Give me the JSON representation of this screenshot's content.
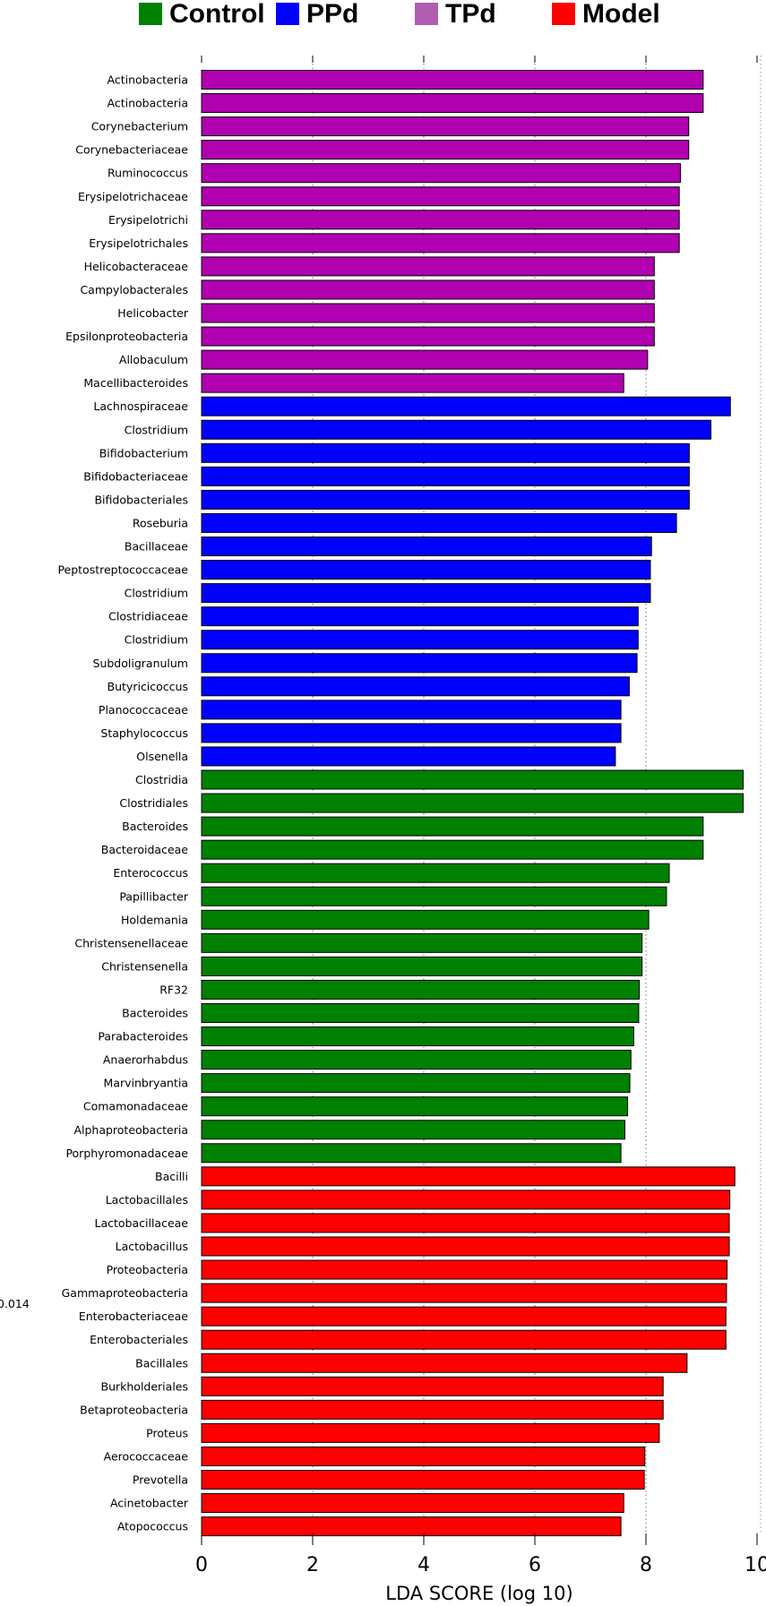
{
  "chart_data": {
    "type": "bar",
    "orientation": "horizontal",
    "xlabel": "LDA SCORE (log 10)",
    "xlim": [
      0,
      10
    ],
    "xticks": [
      "0",
      "2",
      "4",
      "6",
      "8",
      "10"
    ],
    "grid": "vertical dotted",
    "legend_position": "top",
    "side_note": "0.014",
    "groups": [
      {
        "name": "Control",
        "color": "#008000"
      },
      {
        "name": "PPd",
        "color": "#0000ff"
      },
      {
        "name": "TPd",
        "color": "#b05fb0"
      },
      {
        "name": "Model",
        "color": "#ff0000"
      }
    ],
    "group_bar_colors": {
      "Control": "#008000",
      "PPd": "#0000ff",
      "TPd": "#b000b0",
      "Model": "#ff0000"
    },
    "bars": [
      {
        "label": "Actinobacteria",
        "value": 9.03,
        "group": "TPd"
      },
      {
        "label": "Actinobacteria",
        "value": 9.03,
        "group": "TPd"
      },
      {
        "label": "Corynebacterium",
        "value": 8.77,
        "group": "TPd"
      },
      {
        "label": "Corynebacteriaceae",
        "value": 8.77,
        "group": "TPd"
      },
      {
        "label": "Ruminococcus",
        "value": 8.62,
        "group": "TPd"
      },
      {
        "label": "Erysipelotrichaceae",
        "value": 8.6,
        "group": "TPd"
      },
      {
        "label": "Erysipelotrichi",
        "value": 8.6,
        "group": "TPd"
      },
      {
        "label": "Erysipelotrichales",
        "value": 8.6,
        "group": "TPd"
      },
      {
        "label": "Helicobacteraceae",
        "value": 8.15,
        "group": "TPd"
      },
      {
        "label": "Campylobacterales",
        "value": 8.15,
        "group": "TPd"
      },
      {
        "label": "Helicobacter",
        "value": 8.15,
        "group": "TPd"
      },
      {
        "label": "Epsilonproteobacteria",
        "value": 8.15,
        "group": "TPd"
      },
      {
        "label": "Allobaculum",
        "value": 8.03,
        "group": "TPd"
      },
      {
        "label": "Macellibacteroides",
        "value": 7.6,
        "group": "TPd"
      },
      {
        "label": "Lachnospiraceae",
        "value": 9.52,
        "group": "PPd"
      },
      {
        "label": "Clostridium",
        "value": 9.17,
        "group": "PPd"
      },
      {
        "label": "Bifidobacterium",
        "value": 8.78,
        "group": "PPd"
      },
      {
        "label": "Bifidobacteriaceae",
        "value": 8.78,
        "group": "PPd"
      },
      {
        "label": "Bifidobacteriales",
        "value": 8.78,
        "group": "PPd"
      },
      {
        "label": "Roseburia",
        "value": 8.55,
        "group": "PPd"
      },
      {
        "label": "Bacillaceae",
        "value": 8.1,
        "group": "PPd"
      },
      {
        "label": "Peptostreptococcaceae",
        "value": 8.08,
        "group": "PPd"
      },
      {
        "label": "Clostridium",
        "value": 8.08,
        "group": "PPd"
      },
      {
        "label": "Clostridiaceae",
        "value": 7.86,
        "group": "PPd"
      },
      {
        "label": "Clostridium",
        "value": 7.86,
        "group": "PPd"
      },
      {
        "label": "Subdoligranulum",
        "value": 7.84,
        "group": "PPd"
      },
      {
        "label": "Butyricicoccus",
        "value": 7.7,
        "group": "PPd"
      },
      {
        "label": "Planococcaceae",
        "value": 7.55,
        "group": "PPd"
      },
      {
        "label": "Staphylococcus",
        "value": 7.55,
        "group": "PPd"
      },
      {
        "label": "Olsenella",
        "value": 7.45,
        "group": "PPd"
      },
      {
        "label": "Clostridia",
        "value": 9.75,
        "group": "Control"
      },
      {
        "label": "Clostridiales",
        "value": 9.75,
        "group": "Control"
      },
      {
        "label": "Bacteroides",
        "value": 9.03,
        "group": "Control"
      },
      {
        "label": "Bacteroidaceae",
        "value": 9.03,
        "group": "Control"
      },
      {
        "label": "Enterococcus",
        "value": 8.42,
        "group": "Control"
      },
      {
        "label": "Papillibacter",
        "value": 8.37,
        "group": "Control"
      },
      {
        "label": "Holdemania",
        "value": 8.05,
        "group": "Control"
      },
      {
        "label": "Christensenellaceae",
        "value": 7.93,
        "group": "Control"
      },
      {
        "label": "Christensenella",
        "value": 7.93,
        "group": "Control"
      },
      {
        "label": "RF32",
        "value": 7.88,
        "group": "Control"
      },
      {
        "label": "Bacteroides",
        "value": 7.87,
        "group": "Control"
      },
      {
        "label": "Parabacteroides",
        "value": 7.78,
        "group": "Control"
      },
      {
        "label": "Anaerorhabdus",
        "value": 7.73,
        "group": "Control"
      },
      {
        "label": "Marvinbryantia",
        "value": 7.71,
        "group": "Control"
      },
      {
        "label": "Comamonadaceae",
        "value": 7.67,
        "group": "Control"
      },
      {
        "label": "Alphaproteobacteria",
        "value": 7.62,
        "group": "Control"
      },
      {
        "label": "Porphyromonadaceae",
        "value": 7.55,
        "group": "Control"
      },
      {
        "label": "Bacilli",
        "value": 9.6,
        "group": "Model"
      },
      {
        "label": "Lactobacillales",
        "value": 9.51,
        "group": "Model"
      },
      {
        "label": "Lactobacillaceae",
        "value": 9.5,
        "group": "Model"
      },
      {
        "label": "Lactobacillus",
        "value": 9.5,
        "group": "Model"
      },
      {
        "label": "Proteobacteria",
        "value": 9.46,
        "group": "Model"
      },
      {
        "label": "Gammaproteobacteria",
        "value": 9.45,
        "group": "Model"
      },
      {
        "label": "Enterobacteriaceae",
        "value": 9.44,
        "group": "Model"
      },
      {
        "label": "Enterobacteriales",
        "value": 9.44,
        "group": "Model"
      },
      {
        "label": "Bacillales",
        "value": 8.74,
        "group": "Model"
      },
      {
        "label": "Burkholderiales",
        "value": 8.31,
        "group": "Model"
      },
      {
        "label": "Betaproteobacteria",
        "value": 8.31,
        "group": "Model"
      },
      {
        "label": "Proteus",
        "value": 8.24,
        "group": "Model"
      },
      {
        "label": "Aerococcaceae",
        "value": 7.98,
        "group": "Model"
      },
      {
        "label": "Prevotella",
        "value": 7.97,
        "group": "Model"
      },
      {
        "label": "Acinetobacter",
        "value": 7.6,
        "group": "Model"
      },
      {
        "label": "Atopococcus",
        "value": 7.55,
        "group": "Model"
      }
    ]
  }
}
